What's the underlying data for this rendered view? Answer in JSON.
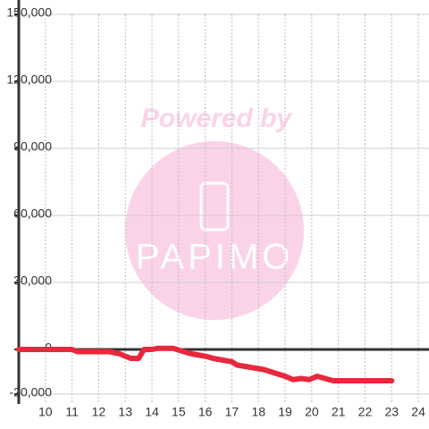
{
  "chart_data": {
    "type": "line",
    "watermark": "Powered by",
    "watermark_logo": "PAPIMO",
    "x": [
      9,
      11,
      11.2,
      12.4,
      12.8,
      13.2,
      13.5,
      13.7,
      14.0,
      14.2,
      14.8,
      15.2,
      15.5,
      16.0,
      16.3,
      17.0,
      17.2,
      17.7,
      18.2,
      18.6,
      19.0,
      19.3,
      19.6,
      19.9,
      20.2,
      20.5,
      20.8,
      21.0,
      23
    ],
    "series": [
      {
        "color": "#e8283c",
        "values": [
          0,
          0,
          -1000,
          -1000,
          -2000,
          -4000,
          -4000,
          0,
          0,
          500,
          500,
          -1000,
          -2000,
          -3000,
          -4000,
          -5500,
          -7000,
          -8000,
          -9000,
          -10500,
          -12000,
          -13500,
          -13000,
          -13500,
          -12000,
          -13000,
          -14000,
          -14000,
          -14000
        ]
      }
    ],
    "xlim": [
      9,
      24.4
    ],
    "xticks": [
      10,
      11,
      12,
      13,
      14,
      15,
      16,
      17,
      18,
      19,
      20,
      21,
      22,
      23,
      24
    ],
    "ylim": [
      -20000,
      150000
    ],
    "yticks": [
      {
        "value": -20000,
        "label": "-20,000"
      },
      0,
      {
        "value": 30000,
        "label": "30,000"
      },
      {
        "value": 60000,
        "label": "60,000"
      },
      {
        "value": 90000,
        "label": "90,000"
      },
      {
        "value": 120000,
        "label": "120,000"
      },
      {
        "value": 150000,
        "label": "150,000"
      }
    ],
    "grid": true
  }
}
